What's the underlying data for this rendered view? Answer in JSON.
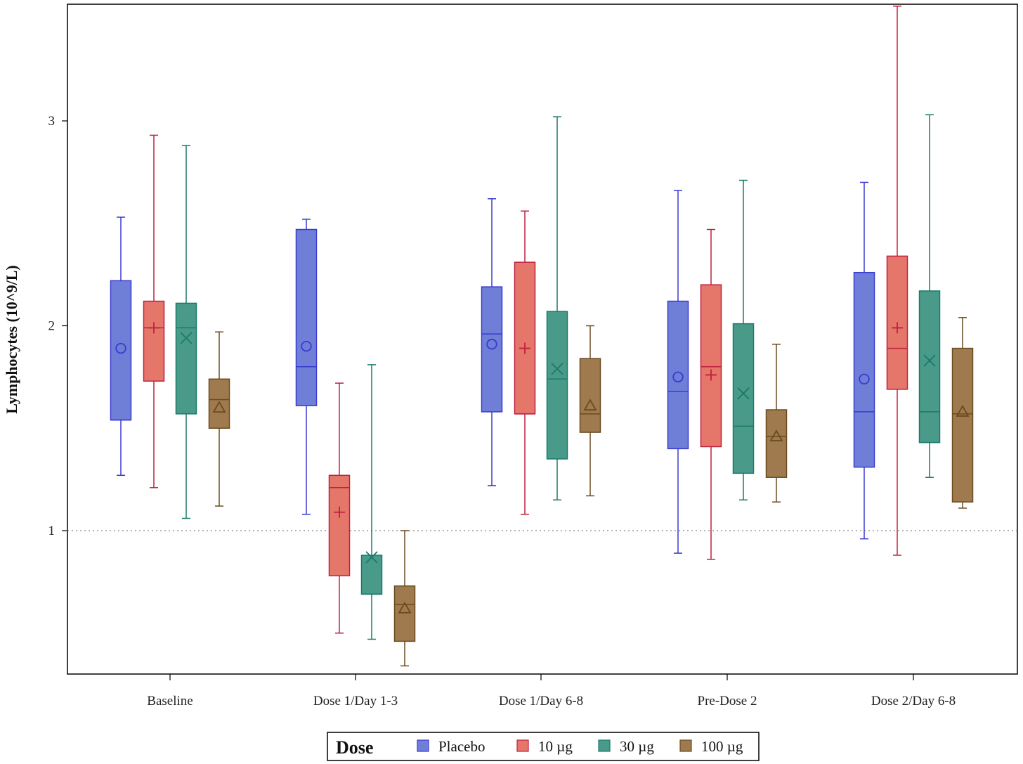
{
  "chart_data": {
    "type": "box",
    "ylabel": "Lymphocytes (10^9/L)",
    "xlabel": "",
    "ylim": [
      0.3,
      3.6
    ],
    "yticks": [
      1,
      2,
      3
    ],
    "reference_line": {
      "y": 1,
      "style": "dotted"
    },
    "categories": [
      "Baseline",
      "Dose 1/Day 1-3",
      "Dose 1/Day 6-8",
      "Pre-Dose 2",
      "Dose 2/Day 6-8"
    ],
    "legend": {
      "title": "Dose",
      "placement": "bottom-center"
    },
    "series": [
      {
        "name": "Placebo",
        "color": "#6f7fd8",
        "line_color": "#3a3ad0",
        "marker": "circle",
        "boxes": [
          {
            "min": 1.27,
            "q1": 1.54,
            "median": 1.54,
            "q3": 2.22,
            "max": 2.53,
            "mean": 1.89
          },
          {
            "min": 1.08,
            "q1": 1.61,
            "median": 1.8,
            "q3": 2.47,
            "max": 2.52,
            "mean": 1.9
          },
          {
            "min": 1.22,
            "q1": 1.58,
            "median": 1.96,
            "q3": 2.19,
            "max": 2.62,
            "mean": 1.91
          },
          {
            "min": 0.89,
            "q1": 1.4,
            "median": 1.68,
            "q3": 2.12,
            "max": 2.66,
            "mean": 1.75
          },
          {
            "min": 0.96,
            "q1": 1.31,
            "median": 1.58,
            "q3": 2.26,
            "max": 2.7,
            "mean": 1.74
          }
        ]
      },
      {
        "name": "10 µg",
        "color": "#e5776a",
        "line_color": "#c02040",
        "marker": "plus",
        "boxes": [
          {
            "min": 1.21,
            "q1": 1.73,
            "median": 1.99,
            "q3": 2.12,
            "max": 2.93,
            "mean": 1.99
          },
          {
            "min": 0.5,
            "q1": 0.78,
            "median": 1.21,
            "q3": 1.27,
            "max": 1.72,
            "mean": 1.09
          },
          {
            "min": 1.08,
            "q1": 1.57,
            "median": 1.57,
            "q3": 2.31,
            "max": 2.56,
            "mean": 1.89
          },
          {
            "min": 0.86,
            "q1": 1.41,
            "median": 1.8,
            "q3": 2.2,
            "max": 2.47,
            "mean": 1.76
          },
          {
            "min": 0.88,
            "q1": 1.69,
            "median": 1.89,
            "q3": 2.34,
            "max": 3.56,
            "mean": 1.99
          }
        ]
      },
      {
        "name": "30 µg",
        "color": "#4a9a8a",
        "line_color": "#1a7a6a",
        "marker": "x",
        "boxes": [
          {
            "min": 1.06,
            "q1": 1.57,
            "median": 1.99,
            "q3": 2.11,
            "max": 2.88,
            "mean": 1.94
          },
          {
            "min": 0.47,
            "q1": 0.69,
            "median": 0.69,
            "q3": 0.88,
            "max": 1.81,
            "mean": 0.87
          },
          {
            "min": 1.15,
            "q1": 1.35,
            "median": 1.74,
            "q3": 2.07,
            "max": 3.02,
            "mean": 1.79
          },
          {
            "min": 1.15,
            "q1": 1.28,
            "median": 1.51,
            "q3": 2.01,
            "max": 2.71,
            "mean": 1.67
          },
          {
            "min": 1.26,
            "q1": 1.43,
            "median": 1.58,
            "q3": 2.17,
            "max": 3.03,
            "mean": 1.83
          }
        ]
      },
      {
        "name": "100 µg",
        "color": "#9e7a4e",
        "line_color": "#6b4a20",
        "marker": "triangle",
        "boxes": [
          {
            "min": 1.12,
            "q1": 1.5,
            "median": 1.64,
            "q3": 1.74,
            "max": 1.97,
            "mean": 1.6
          },
          {
            "min": 0.34,
            "q1": 0.46,
            "median": 0.64,
            "q3": 0.73,
            "max": 1.0,
            "mean": 0.62
          },
          {
            "min": 1.17,
            "q1": 1.48,
            "median": 1.57,
            "q3": 1.84,
            "max": 2.0,
            "mean": 1.61
          },
          {
            "min": 1.14,
            "q1": 1.26,
            "median": 1.46,
            "q3": 1.59,
            "max": 1.91,
            "mean": 1.46
          },
          {
            "min": 1.11,
            "q1": 1.14,
            "median": 1.57,
            "q3": 1.89,
            "max": 2.04,
            "mean": 1.58
          }
        ]
      }
    ]
  }
}
